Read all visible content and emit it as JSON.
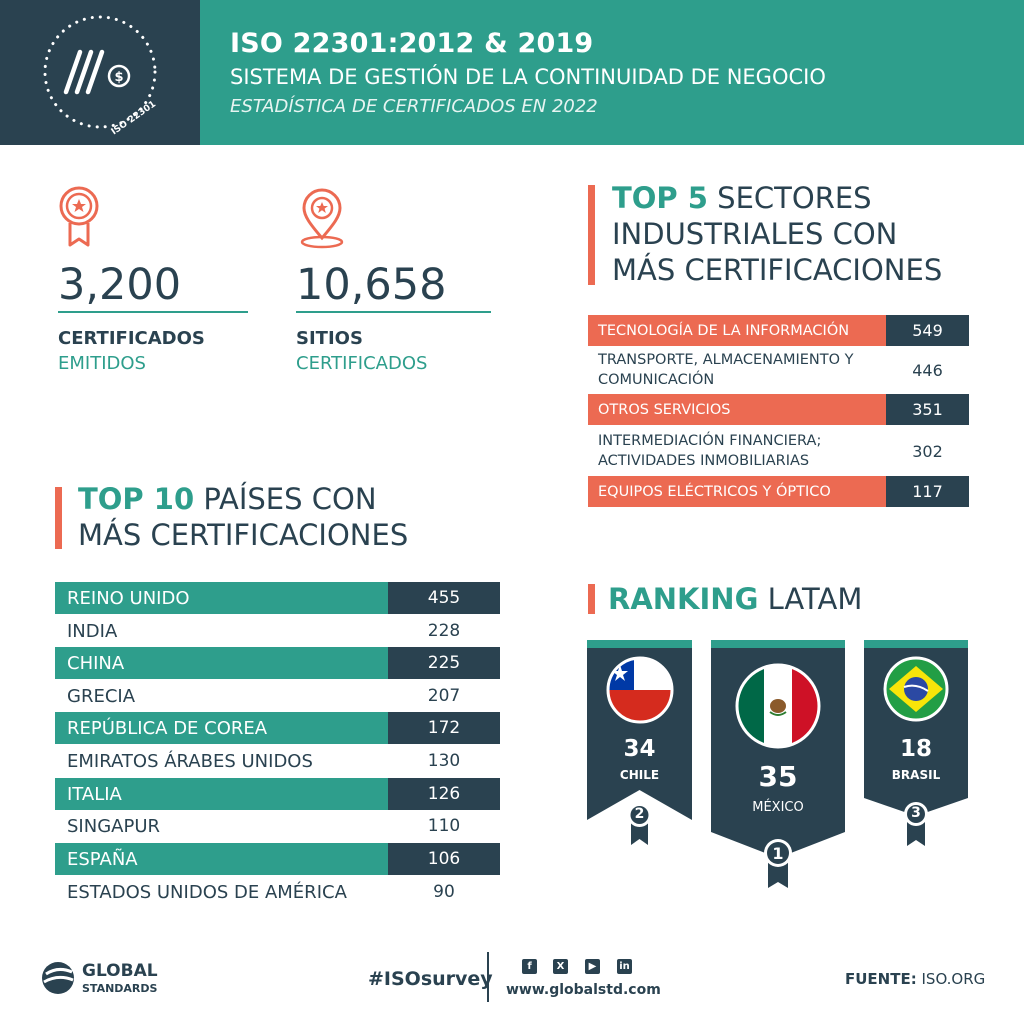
{
  "header": {
    "title": "ISO 22301:2012 & 2019",
    "subtitle": "SISTEMA DE GESTIÓN DE LA CONTINUIDAD DE NEGOCIO",
    "caption": "ESTADÍSTICA DE CERTIFICADOS EN 2022",
    "badge_text": "ISO 22301",
    "logo_icon": "money-stack-icon"
  },
  "stats": [
    {
      "icon": "award-ribbon-icon",
      "value": "3,200",
      "line1": "CERTIFICADOS",
      "line2": "EMITIDOS"
    },
    {
      "icon": "location-pin-star-icon",
      "value": "10,658",
      "line1": "SITIOS",
      "line2": "CERTIFICADOS"
    }
  ],
  "sectors": {
    "title_highlight": "TOP 5",
    "title_rest1": " SECTORES",
    "title_line2": "INDUSTRIALES CON",
    "title_line3": "MÁS CERTIFICACIONES",
    "rows": [
      {
        "label": "TECNOLOGÍA DE LA INFORMACIÓN",
        "value": "549"
      },
      {
        "label": "TRANSPORTE, ALMACENAMIENTO Y COMUNICACIÓN",
        "value": "446"
      },
      {
        "label": "OTROS SERVICIOS",
        "value": "351"
      },
      {
        "label": "INTERMEDIACIÓN FINANCIERA; ACTIVIDADES INMOBILIARIAS",
        "value": "302"
      },
      {
        "label": "EQUIPOS ELÉCTRICOS Y ÓPTICO",
        "value": "117"
      }
    ]
  },
  "countries": {
    "title_highlight": "TOP 10",
    "title_rest1": " PAÍSES CON",
    "title_line2": "MÁS CERTIFICACIONES",
    "rows": [
      {
        "label": "REINO UNIDO",
        "value": "455"
      },
      {
        "label": "INDIA",
        "value": "228"
      },
      {
        "label": "CHINA",
        "value": "225"
      },
      {
        "label": "GRECIA",
        "value": "207"
      },
      {
        "label": "REPÚBLICA DE COREA",
        "value": "172"
      },
      {
        "label": "EMIRATOS ÁRABES UNIDOS",
        "value": "130"
      },
      {
        "label": "ITALIA",
        "value": "126"
      },
      {
        "label": "SINGAPUR",
        "value": "110"
      },
      {
        "label": "ESPAÑA",
        "value": "106"
      },
      {
        "label": "ESTADOS UNIDOS DE AMÉRICA",
        "value": "90"
      }
    ]
  },
  "ranking": {
    "title_highlight": "RANKING",
    "title_rest": " LATAM",
    "items": [
      {
        "country": "CHILE",
        "count": "34",
        "place": "2",
        "flag": "chile-flag-icon"
      },
      {
        "country": "MÉXICO",
        "count": "35",
        "place": "1",
        "flag": "mexico-flag-icon"
      },
      {
        "country": "BRASIL",
        "count": "18",
        "place": "3",
        "flag": "brazil-flag-icon"
      }
    ]
  },
  "footer": {
    "brand_line1": "GLOBAL",
    "brand_line2": "STANDARDS",
    "hashtag": "#ISOsurvey",
    "website": "www.globalstd.com",
    "source_label": "FUENTE:",
    "source_value": "ISO.ORG",
    "social": [
      "facebook-icon",
      "x-icon",
      "youtube-icon",
      "linkedin-icon"
    ]
  },
  "colors": {
    "teal": "#2e9e8c",
    "navy": "#2a4250",
    "coral": "#ec6a52"
  }
}
